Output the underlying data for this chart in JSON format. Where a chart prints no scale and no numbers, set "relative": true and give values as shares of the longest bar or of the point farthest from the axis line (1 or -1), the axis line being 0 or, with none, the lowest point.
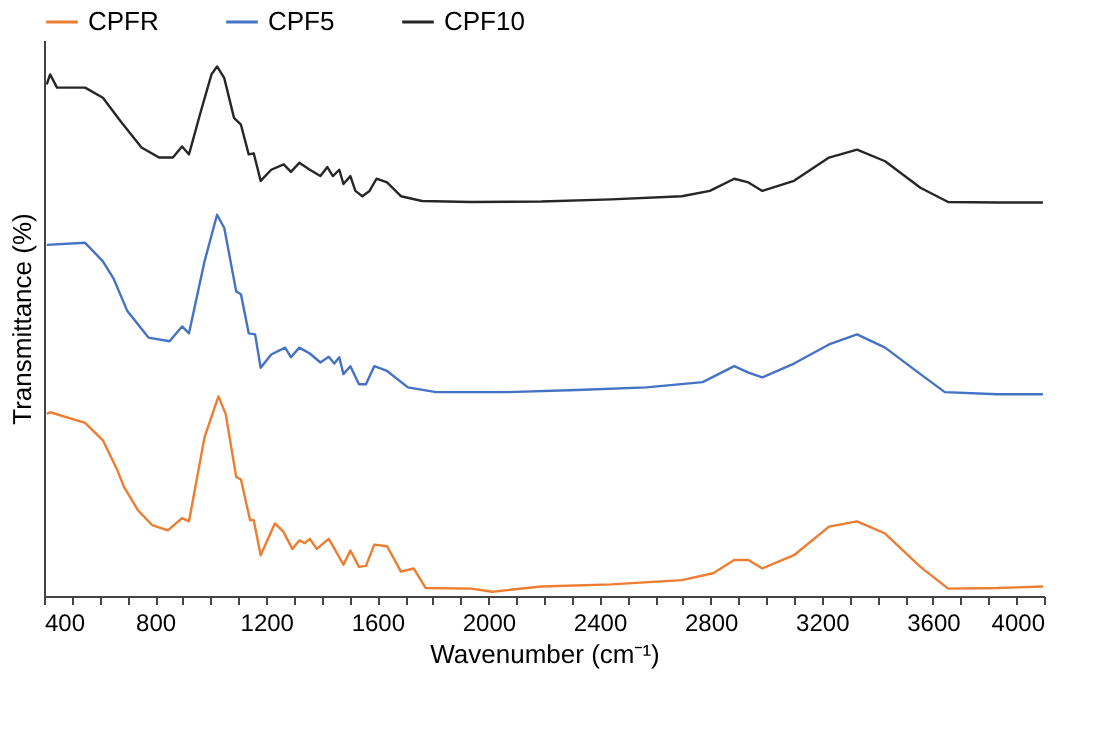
{
  "chart_data": {
    "type": "line",
    "relative": true,
    "xlabel": "Wavenumber (cm⁻¹)",
    "ylabel": "Transmittance (%)",
    "xlim": [
      400,
      4000
    ],
    "xticks": [
      400,
      {
        "value": 500,
        "label": null
      },
      {
        "value": 600,
        "label": null
      },
      {
        "value": 700,
        "label": null
      },
      800,
      {
        "value": 900,
        "label": null
      },
      {
        "value": 1000,
        "label": null
      },
      {
        "value": 1100,
        "label": null
      },
      1200,
      {
        "value": 1300,
        "label": null
      },
      {
        "value": 1400,
        "label": null
      },
      {
        "value": 1500,
        "label": null
      },
      1600,
      {
        "value": 1700,
        "label": null
      },
      {
        "value": 1800,
        "label": null
      },
      {
        "value": 1900,
        "label": null
      },
      2000,
      {
        "value": 2100,
        "label": null
      },
      {
        "value": 2200,
        "label": null
      },
      {
        "value": 2300,
        "label": null
      },
      2400,
      {
        "value": 2500,
        "label": null
      },
      {
        "value": 2600,
        "label": null
      },
      {
        "value": 2700,
        "label": null
      },
      2800,
      {
        "value": 2900,
        "label": null
      },
      {
        "value": 3000,
        "label": null
      },
      {
        "value": 3100,
        "label": null
      },
      3200,
      {
        "value": 3300,
        "label": null
      },
      {
        "value": 3400,
        "label": null
      },
      {
        "value": 3500,
        "label": null
      },
      3600,
      {
        "value": 3700,
        "label": null
      },
      {
        "value": 3800,
        "label": null
      },
      {
        "value": 3900,
        "label": null
      },
      4000
    ],
    "grid": false,
    "legend": "top",
    "marker": "none",
    "line_style": "solid",
    "series": [
      {
        "name": "CPFR",
        "color": "#ed7d31",
        "x": [
          410,
          422,
          548,
          612,
          662,
          688,
          738,
          789,
          846,
          897,
          922,
          978,
          1028,
          1054,
          1092,
          1109,
          1142,
          1155,
          1180,
          1231,
          1261,
          1294,
          1319,
          1339,
          1357,
          1382,
          1425,
          1445,
          1478,
          1503,
          1534,
          1559,
          1589,
          1635,
          1685,
          1731,
          1774,
          1938,
          2014,
          2190,
          2443,
          2696,
          2809,
          2885,
          2936,
          2986,
          3100,
          3226,
          3327,
          3428,
          3555,
          3655,
          3832,
          3996
        ],
        "values": [
          0.344,
          0.347,
          0.327,
          0.294,
          0.24,
          0.206,
          0.162,
          0.134,
          0.124,
          0.147,
          0.141,
          0.3,
          0.377,
          0.344,
          0.225,
          0.22,
          0.143,
          0.143,
          0.077,
          0.137,
          0.122,
          0.089,
          0.105,
          0.1,
          0.108,
          0.089,
          0.108,
          0.09,
          0.059,
          0.086,
          0.055,
          0.057,
          0.097,
          0.094,
          0.046,
          0.052,
          0.015,
          0.014,
          0.008,
          0.018,
          0.022,
          0.03,
          0.043,
          0.068,
          0.068,
          0.052,
          0.077,
          0.131,
          0.141,
          0.118,
          0.055,
          0.014,
          0.015,
          0.018
        ]
      },
      {
        "name": "CPF5",
        "color": "#4472c4",
        "x": [
          410,
          548,
          612,
          650,
          700,
          776,
          852,
          897,
          922,
          978,
          1023,
          1049,
          1092,
          1109,
          1137,
          1160,
          1180,
          1218,
          1268,
          1289,
          1319,
          1357,
          1395,
          1425,
          1445,
          1463,
          1478,
          1503,
          1534,
          1559,
          1589,
          1635,
          1710,
          1811,
          2064,
          2317,
          2569,
          2771,
          2885,
          2936,
          2986,
          3100,
          3226,
          3327,
          3428,
          3555,
          3643,
          3832,
          3996
        ],
        "values": [
          0.663,
          0.667,
          0.632,
          0.6,
          0.538,
          0.488,
          0.481,
          0.509,
          0.496,
          0.632,
          0.72,
          0.695,
          0.575,
          0.57,
          0.496,
          0.494,
          0.431,
          0.456,
          0.469,
          0.451,
          0.469,
          0.458,
          0.441,
          0.452,
          0.439,
          0.451,
          0.419,
          0.434,
          0.4,
          0.4,
          0.434,
          0.425,
          0.394,
          0.385,
          0.385,
          0.389,
          0.394,
          0.404,
          0.434,
          0.422,
          0.413,
          0.439,
          0.475,
          0.494,
          0.469,
          0.419,
          0.385,
          0.381,
          0.381
        ]
      },
      {
        "name": "CPF10",
        "color": "#262626",
        "x": [
          410,
          422,
          447,
          548,
          612,
          675,
          751,
          814,
          864,
          897,
          922,
          965,
          1003,
          1023,
          1049,
          1084,
          1109,
          1137,
          1155,
          1180,
          1218,
          1263,
          1289,
          1319,
          1357,
          1395,
          1420,
          1440,
          1463,
          1478,
          1503,
          1521,
          1546,
          1572,
          1597,
          1635,
          1685,
          1761,
          1938,
          2190,
          2443,
          2696,
          2797,
          2885,
          2936,
          2986,
          3100,
          3226,
          3327,
          3428,
          3555,
          3655,
          3832,
          3996
        ],
        "values": [
          0.966,
          0.985,
          0.96,
          0.96,
          0.941,
          0.897,
          0.847,
          0.828,
          0.828,
          0.849,
          0.834,
          0.916,
          0.985,
          1.0,
          0.978,
          0.903,
          0.89,
          0.834,
          0.836,
          0.784,
          0.805,
          0.815,
          0.801,
          0.818,
          0.805,
          0.793,
          0.81,
          0.793,
          0.805,
          0.778,
          0.793,
          0.765,
          0.755,
          0.765,
          0.788,
          0.781,
          0.755,
          0.746,
          0.744,
          0.745,
          0.749,
          0.755,
          0.765,
          0.788,
          0.781,
          0.765,
          0.784,
          0.828,
          0.843,
          0.821,
          0.771,
          0.744,
          0.743,
          0.743
        ]
      }
    ]
  }
}
